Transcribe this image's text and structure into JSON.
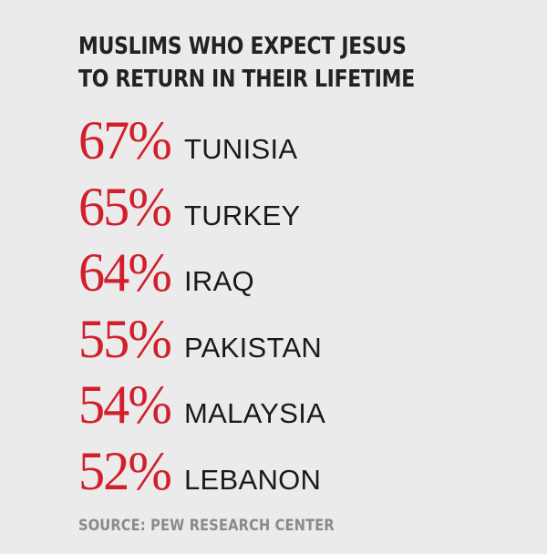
{
  "chart_data": {
    "type": "table",
    "title": "MUSLIMS WHO EXPECT JESUS TO RETURN IN THEIR LIFETIME",
    "title_lines": [
      "MUSLIMS WHO EXPECT JESUS",
      "TO RETURN IN THEIR LIFETIME"
    ],
    "rows": [
      {
        "value": "67%",
        "country": "TUNISIA"
      },
      {
        "value": "65%",
        "country": "TURKEY"
      },
      {
        "value": "64%",
        "country": "IRAQ"
      },
      {
        "value": "55%",
        "country": "PAKISTAN"
      },
      {
        "value": "54%",
        "country": "MALAYSIA"
      },
      {
        "value": "52%",
        "country": "LEBANON"
      }
    ],
    "values": [
      67,
      65,
      64,
      55,
      54,
      52
    ],
    "categories": [
      "TUNISIA",
      "TURKEY",
      "IRAQ",
      "PAKISTAN",
      "MALAYSIA",
      "LEBANON"
    ],
    "source": "SOURCE: PEW RESEARCH CENTER"
  },
  "colors": {
    "background": "#ebebeb",
    "percent": "#d11f2c",
    "title": "#222222",
    "country": "#1a1a1a",
    "source": "#8a8a8a"
  }
}
